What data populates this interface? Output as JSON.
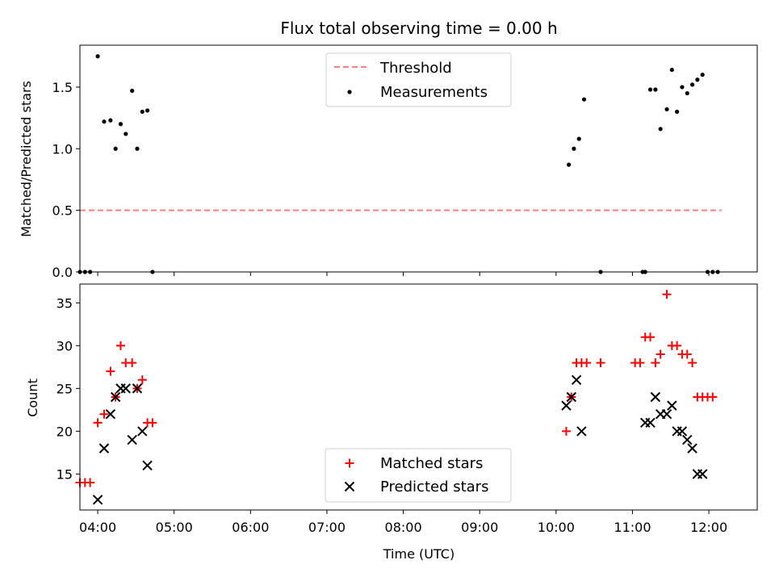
{
  "title": "Flux total observing time = 0.00 h",
  "xlabel": "Time (UTC)",
  "x_ticks": [
    "04:00",
    "05:00",
    "06:00",
    "07:00",
    "08:00",
    "09:00",
    "10:00",
    "11:00",
    "12:00"
  ],
  "colors": {
    "threshold": "#ff7f7f",
    "measurements": "#000000",
    "matched": "#ff0000",
    "predicted": "#000000"
  },
  "chart_data": [
    {
      "type": "scatter",
      "title": "Flux total observing time = 0.00 h",
      "xlabel": "",
      "ylabel": "Matched/Predicted stars",
      "xlim": [
        "03:46",
        "12:38"
      ],
      "ylim": [
        0,
        1.84
      ],
      "y_ticks": [
        "0.0",
        "0.5",
        "1.0",
        "1.5"
      ],
      "grid": false,
      "legend_position": "top-center",
      "series": [
        {
          "name": "Threshold",
          "style": "dashed-line",
          "x": [
            "03:46",
            "12:10"
          ],
          "y": [
            0.5,
            0.5
          ]
        },
        {
          "name": "Measurements",
          "style": "dots",
          "x": [
            "03:46",
            "03:50",
            "03:54",
            "04:00",
            "04:05",
            "04:10",
            "04:14",
            "04:18",
            "04:22",
            "04:27",
            "04:31",
            "04:35",
            "04:39",
            "04:43",
            "10:10",
            "10:14",
            "10:18",
            "10:22",
            "10:35",
            "11:08",
            "11:10",
            "11:14",
            "11:18",
            "11:22",
            "11:27",
            "11:31",
            "11:35",
            "11:39",
            "11:43",
            "11:47",
            "11:51",
            "11:55",
            "11:59",
            "12:03",
            "12:07"
          ],
          "y": [
            0,
            0,
            0,
            1.75,
            1.22,
            1.23,
            1.0,
            1.2,
            1.12,
            1.47,
            1.0,
            1.3,
            1.31,
            0,
            0.87,
            1.0,
            1.08,
            1.4,
            0,
            0,
            0,
            1.48,
            1.48,
            1.16,
            1.32,
            1.64,
            1.3,
            1.5,
            1.45,
            1.52,
            1.56,
            1.6,
            0,
            0,
            0
          ]
        }
      ]
    },
    {
      "type": "scatter",
      "xlabel": "Time (UTC)",
      "ylabel": "Count",
      "xlim": [
        "03:46",
        "12:38"
      ],
      "ylim": [
        10.8,
        37.2
      ],
      "y_ticks": [
        "15",
        "20",
        "25",
        "30",
        "35"
      ],
      "grid": false,
      "legend_position": "bottom-center",
      "series": [
        {
          "name": "Matched stars",
          "marker": "plus",
          "x": [
            "03:46",
            "03:50",
            "03:54",
            "04:00",
            "04:05",
            "04:10",
            "04:14",
            "04:18",
            "04:22",
            "04:27",
            "04:31",
            "04:35",
            "04:39",
            "04:43",
            "10:08",
            "10:12",
            "10:16",
            "10:20",
            "10:24",
            "10:35",
            "11:02",
            "11:06",
            "11:10",
            "11:14",
            "11:18",
            "11:22",
            "11:27",
            "11:31",
            "11:35",
            "11:39",
            "11:43",
            "11:47",
            "11:51",
            "11:55",
            "11:59",
            "12:03"
          ],
          "y": [
            14,
            14,
            14,
            21,
            22,
            27,
            24,
            30,
            28,
            28,
            25,
            26,
            21,
            21,
            20,
            24,
            28,
            28,
            28,
            28,
            28,
            28,
            31,
            31,
            28,
            29,
            36,
            30,
            30,
            29,
            29,
            28,
            24,
            24,
            24,
            24
          ]
        },
        {
          "name": "Predicted stars",
          "marker": "x",
          "x": [
            "04:00",
            "04:05",
            "04:10",
            "04:14",
            "04:18",
            "04:22",
            "04:27",
            "04:31",
            "04:35",
            "04:39",
            "10:08",
            "10:12",
            "10:16",
            "10:20",
            "11:10",
            "11:14",
            "11:18",
            "11:22",
            "11:27",
            "11:31",
            "11:35",
            "11:39",
            "11:43",
            "11:47",
            "11:51",
            "11:55"
          ],
          "y": [
            12,
            18,
            22,
            24,
            25,
            25,
            19,
            25,
            20,
            16,
            23,
            24,
            26,
            20,
            21,
            21,
            24,
            22,
            22,
            23,
            20,
            20,
            19,
            18,
            15,
            15
          ]
        }
      ]
    }
  ]
}
